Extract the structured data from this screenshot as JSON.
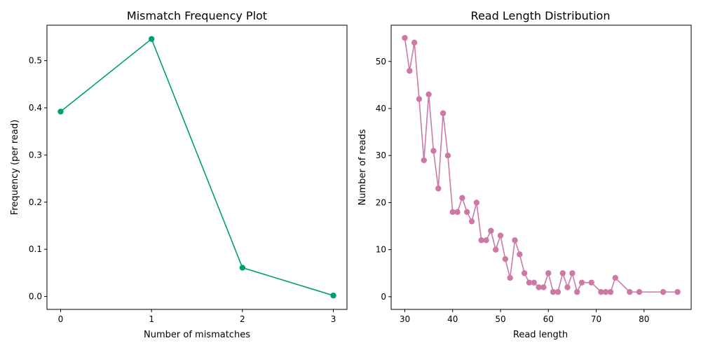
{
  "chart_data": [
    {
      "type": "line",
      "title": "Mismatch Frequency Plot",
      "xlabel": "Number of mismatches",
      "ylabel": "Frequency (per read)",
      "xlim": [
        -0.15,
        3.15
      ],
      "ylim": [
        -0.0274,
        0.5752
      ],
      "xticks": [
        0,
        1,
        2,
        3
      ],
      "yticks": [
        0.0,
        0.1,
        0.2,
        0.3,
        0.4,
        0.5
      ],
      "ytick_labels": [
        "0.0",
        "0.1",
        "0.2",
        "0.3",
        "0.4",
        "0.5"
      ],
      "grid": false,
      "series": [
        {
          "color": "#009e73",
          "marker": "circle",
          "x": [
            0,
            1,
            2,
            3
          ],
          "y": [
            0.392,
            0.546,
            0.061,
            0.002
          ]
        }
      ]
    },
    {
      "type": "line",
      "title": "Read Length Distribution",
      "xlabel": "Read length",
      "ylabel": "Number of reads",
      "xlim": [
        27.15,
        89.85
      ],
      "ylim": [
        -2.7,
        57.7
      ],
      "xticks": [
        30,
        40,
        50,
        60,
        70,
        80
      ],
      "yticks": [
        0,
        10,
        20,
        30,
        40,
        50
      ],
      "ytick_labels": [
        "0",
        "10",
        "20",
        "30",
        "40",
        "50"
      ],
      "grid": false,
      "series": [
        {
          "color": "#cc79a7",
          "marker": "circle",
          "x": [
            30,
            31,
            32,
            33,
            34,
            35,
            36,
            37,
            38,
            39,
            40,
            41,
            42,
            43,
            44,
            45,
            46,
            47,
            48,
            49,
            50,
            51,
            52,
            53,
            54,
            55,
            56,
            57,
            58,
            59,
            60,
            61,
            62,
            63,
            64,
            65,
            66,
            67,
            69,
            71,
            72,
            73,
            74,
            77,
            79,
            84,
            87
          ],
          "y": [
            55,
            48,
            54,
            42,
            29,
            43,
            31,
            23,
            39,
            30,
            18,
            18,
            21,
            18,
            16,
            20,
            12,
            12,
            14,
            10,
            13,
            8,
            4,
            12,
            9,
            5,
            3,
            3,
            2,
            2,
            5,
            1,
            1,
            5,
            2,
            5,
            1,
            3,
            3,
            1,
            1,
            1,
            4,
            1,
            1,
            1,
            1
          ]
        }
      ]
    }
  ]
}
